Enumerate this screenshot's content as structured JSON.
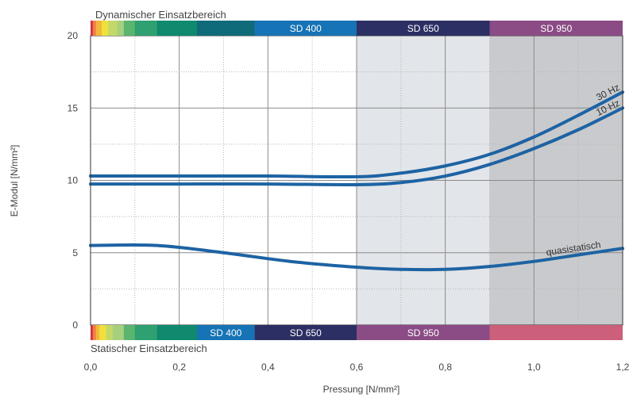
{
  "chart_data": {
    "type": "line",
    "xlabel": "Pressung [N/mm²]",
    "ylabel": "E-Modul [N/mm²]",
    "xlim": [
      0,
      1.2
    ],
    "ylim": [
      0,
      20
    ],
    "x_ticks": [
      "0,0",
      "0,2",
      "0,4",
      "0,6",
      "0,8",
      "1,0",
      "1,2"
    ],
    "y_ticks": [
      "0",
      "5",
      "10",
      "15",
      "20"
    ],
    "grid": true,
    "series": [
      {
        "name": "30 Hz",
        "color": "#1d63a3",
        "points": [
          [
            0,
            10.3
          ],
          [
            0.2,
            10.3
          ],
          [
            0.4,
            10.3
          ],
          [
            0.6,
            10.25
          ],
          [
            0.7,
            10.5
          ],
          [
            0.8,
            11.0
          ],
          [
            0.9,
            11.8
          ],
          [
            1.0,
            13.0
          ],
          [
            1.1,
            14.5
          ],
          [
            1.2,
            16.1
          ]
        ]
      },
      {
        "name": "10 Hz",
        "color": "#1d63a3",
        "points": [
          [
            0,
            9.75
          ],
          [
            0.2,
            9.75
          ],
          [
            0.4,
            9.75
          ],
          [
            0.6,
            9.7
          ],
          [
            0.7,
            9.85
          ],
          [
            0.8,
            10.3
          ],
          [
            0.9,
            11.1
          ],
          [
            1.0,
            12.2
          ],
          [
            1.1,
            13.5
          ],
          [
            1.2,
            15.0
          ]
        ]
      },
      {
        "name": "quasistatisch",
        "color": "#1d63a3",
        "points": [
          [
            0,
            5.5
          ],
          [
            0.15,
            5.5
          ],
          [
            0.3,
            5.0
          ],
          [
            0.45,
            4.4
          ],
          [
            0.6,
            4.0
          ],
          [
            0.7,
            3.85
          ],
          [
            0.8,
            3.85
          ],
          [
            0.9,
            4.05
          ],
          [
            1.0,
            4.4
          ],
          [
            1.1,
            4.85
          ],
          [
            1.2,
            5.3
          ]
        ]
      }
    ],
    "shaded_regions": [
      {
        "x_from": 0.6,
        "x_to": 0.9,
        "color": "#e2e5e9"
      },
      {
        "x_from": 0.9,
        "x_to": 1.2,
        "color": "#c8cacd"
      }
    ],
    "dynamic_bar": {
      "title": "Dynamischer Einsatzbereich",
      "rainbow": [
        {
          "x_from": 0.0,
          "x_to": 0.005,
          "color": "#d2334a"
        },
        {
          "x_from": 0.005,
          "x_to": 0.012,
          "color": "#ee7f43"
        },
        {
          "x_from": 0.012,
          "x_to": 0.025,
          "color": "#f3b53c"
        },
        {
          "x_from": 0.025,
          "x_to": 0.04,
          "color": "#f0e03c"
        },
        {
          "x_from": 0.04,
          "x_to": 0.06,
          "color": "#c4d86a"
        },
        {
          "x_from": 0.06,
          "x_to": 0.075,
          "color": "#a7d07e"
        },
        {
          "x_from": 0.075,
          "x_to": 0.1,
          "color": "#5bb56e"
        },
        {
          "x_from": 0.1,
          "x_to": 0.15,
          "color": "#2ea071"
        },
        {
          "x_from": 0.15,
          "x_to": 0.24,
          "color": "#0f8a6e"
        },
        {
          "x_from": 0.24,
          "x_to": 0.37,
          "color": "#0f6b7a"
        }
      ],
      "bands": [
        {
          "label": "SD 400",
          "x_from": 0.37,
          "x_to": 0.6,
          "color": "#1673b5"
        },
        {
          "label": "SD 650",
          "x_from": 0.6,
          "x_to": 0.9,
          "color": "#2b2f63"
        },
        {
          "label": "SD 950",
          "x_from": 0.9,
          "x_to": 1.2,
          "color": "#8b4b85"
        }
      ]
    },
    "static_bar": {
      "title": "Statischer Einsatzbereich",
      "rainbow": [
        {
          "x_from": 0.0,
          "x_to": 0.005,
          "color": "#d2334a"
        },
        {
          "x_from": 0.005,
          "x_to": 0.012,
          "color": "#ee7f43"
        },
        {
          "x_from": 0.012,
          "x_to": 0.02,
          "color": "#f3b53c"
        },
        {
          "x_from": 0.02,
          "x_to": 0.035,
          "color": "#f0e03c"
        },
        {
          "x_from": 0.035,
          "x_to": 0.05,
          "color": "#c4d86a"
        },
        {
          "x_from": 0.05,
          "x_to": 0.075,
          "color": "#a7d07e"
        },
        {
          "x_from": 0.075,
          "x_to": 0.1,
          "color": "#5bb56e"
        },
        {
          "x_from": 0.1,
          "x_to": 0.15,
          "color": "#2ea071"
        },
        {
          "x_from": 0.15,
          "x_to": 0.24,
          "color": "#0f8a6e"
        }
      ],
      "bands": [
        {
          "label": "SD 400",
          "x_from": 0.24,
          "x_to": 0.37,
          "color": "#1673b5"
        },
        {
          "label": "SD 650",
          "x_from": 0.37,
          "x_to": 0.6,
          "color": "#2b2f63"
        },
        {
          "label": "SD 950",
          "x_from": 0.6,
          "x_to": 0.9,
          "color": "#8b4b85"
        },
        {
          "label": "",
          "x_from": 0.9,
          "x_to": 1.2,
          "color": "#cc5f7a"
        }
      ]
    }
  }
}
